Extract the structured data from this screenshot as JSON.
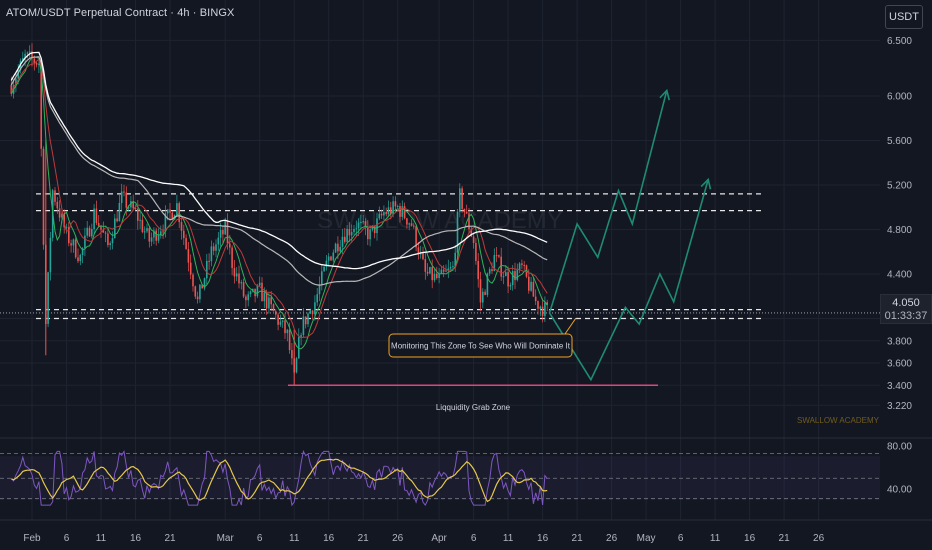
{
  "header": {
    "symbol_title": "ATOM/USDT Perpetual Contract · 4h · BINGX",
    "currency_label": "USDT"
  },
  "price_label": {
    "price": "4.050",
    "countdown": "01:33:37"
  },
  "watermark": {
    "center": "SWALLOW ACADEMY",
    "corner": "SWALLOW ACADEMY"
  },
  "annotations": {
    "monitoring_zone": "Monitoring This Zone To See Who Will Dominate It",
    "liquidity_zone": "Liqquidity Grab Zone"
  },
  "colors": {
    "background": "#131722",
    "up_candle": "#26a69a",
    "down_candle": "#ef5350",
    "projection": "#1e8c72",
    "callout_border": "#f0a020",
    "liquidity_line": "#e0457b",
    "rsi_line": "#7e57c2",
    "rsi_ma": "#e6c84a",
    "ma_white": "#ffffff",
    "ma_grey": "#b8b8b8"
  },
  "chart_data": {
    "type": "candlestick",
    "title": "ATOM/USDT Perpetual Contract · 4h · BINGX",
    "price_ticks": [
      "6.500",
      "6.000",
      "5.600",
      "5.200",
      "4.800",
      "4.400",
      "4.000",
      "3.800",
      "3.600",
      "3.400",
      "3.220"
    ],
    "rsi_ticks": [
      "80.00",
      "40.00"
    ],
    "date_ticks": [
      {
        "label": "Feb",
        "date": "2025-02-01"
      },
      {
        "label": "6",
        "date": "2025-02-06"
      },
      {
        "label": "11",
        "date": "2025-02-11"
      },
      {
        "label": "16",
        "date": "2025-02-16"
      },
      {
        "label": "21",
        "date": "2025-02-21"
      },
      {
        "label": "Mar",
        "date": "2025-03-01"
      },
      {
        "label": "6",
        "date": "2025-03-06"
      },
      {
        "label": "11",
        "date": "2025-03-11"
      },
      {
        "label": "16",
        "date": "2025-03-16"
      },
      {
        "label": "21",
        "date": "2025-03-21"
      },
      {
        "label": "26",
        "date": "2025-03-26"
      },
      {
        "label": "Apr",
        "date": "2025-04-01"
      },
      {
        "label": "6",
        "date": "2025-04-06"
      },
      {
        "label": "11",
        "date": "2025-04-11"
      },
      {
        "label": "16",
        "date": "2025-04-16"
      },
      {
        "label": "21",
        "date": "2025-04-21"
      },
      {
        "label": "26",
        "date": "2025-04-26"
      },
      {
        "label": "May",
        "date": "2025-05-01"
      },
      {
        "label": "6",
        "date": "2025-05-06"
      },
      {
        "label": "11",
        "date": "2025-05-11"
      },
      {
        "label": "16",
        "date": "2025-05-16"
      },
      {
        "label": "21",
        "date": "2025-05-21"
      },
      {
        "label": "26",
        "date": "2025-05-26"
      }
    ],
    "price_path": [
      [
        "2025-01-29",
        6.1
      ],
      [
        "2025-01-31",
        6.35
      ],
      [
        "2025-02-02",
        6.3
      ],
      [
        "2025-02-03",
        3.95
      ],
      [
        "2025-02-04",
        5.15
      ],
      [
        "2025-02-06",
        4.75
      ],
      [
        "2025-02-08",
        4.55
      ],
      [
        "2025-02-10",
        4.95
      ],
      [
        "2025-02-12",
        4.65
      ],
      [
        "2025-02-14",
        5.08
      ],
      [
        "2025-02-16",
        4.95
      ],
      [
        "2025-02-18",
        4.7
      ],
      [
        "2025-02-20",
        4.85
      ],
      [
        "2025-02-22",
        5.02
      ],
      [
        "2025-02-24",
        4.45
      ],
      [
        "2025-02-25",
        4.15
      ],
      [
        "2025-02-27",
        4.6
      ],
      [
        "2025-03-01",
        4.8
      ],
      [
        "2025-03-02",
        4.5
      ],
      [
        "2025-03-04",
        4.15
      ],
      [
        "2025-03-06",
        4.25
      ],
      [
        "2025-03-08",
        4.05
      ],
      [
        "2025-03-10",
        3.85
      ],
      [
        "2025-03-11",
        3.45
      ],
      [
        "2025-03-12",
        3.92
      ],
      [
        "2025-03-14",
        4.15
      ],
      [
        "2025-03-16",
        4.55
      ],
      [
        "2025-03-18",
        4.75
      ],
      [
        "2025-03-20",
        4.85
      ],
      [
        "2025-03-22",
        4.75
      ],
      [
        "2025-03-24",
        4.95
      ],
      [
        "2025-03-26",
        5.0
      ],
      [
        "2025-03-28",
        4.85
      ],
      [
        "2025-03-30",
        4.4
      ],
      [
        "2025-04-01",
        4.35
      ],
      [
        "2025-04-03",
        4.45
      ],
      [
        "2025-04-04",
        5.1
      ],
      [
        "2025-04-06",
        4.7
      ],
      [
        "2025-04-07",
        4.15
      ],
      [
        "2025-04-09",
        4.55
      ],
      [
        "2025-04-11",
        4.35
      ],
      [
        "2025-04-13",
        4.45
      ],
      [
        "2025-04-15",
        4.15
      ],
      [
        "2025-04-17",
        4.05
      ]
    ],
    "projection_paths": [
      [
        [
          "2025-04-17",
          4.05
        ],
        [
          "2025-04-21",
          4.85
        ],
        [
          "2025-04-24",
          4.55
        ],
        [
          "2025-04-27",
          5.15
        ],
        [
          "2025-04-29",
          4.85
        ],
        [
          "2025-05-04",
          6.05
        ]
      ],
      [
        [
          "2025-04-17",
          4.05
        ],
        [
          "2025-04-23",
          3.45
        ],
        [
          "2025-04-28",
          4.1
        ],
        [
          "2025-04-30",
          3.95
        ],
        [
          "2025-05-03",
          4.4
        ],
        [
          "2025-05-05",
          4.15
        ],
        [
          "2025-05-10",
          5.25
        ]
      ]
    ],
    "levels": {
      "resistance_top": 5.12,
      "resistance_bottom": 4.97,
      "support_top": 4.08,
      "support_bottom": 4.0,
      "liquidity_grab": 3.4
    },
    "rsi_band": [
      30,
      70
    ]
  }
}
